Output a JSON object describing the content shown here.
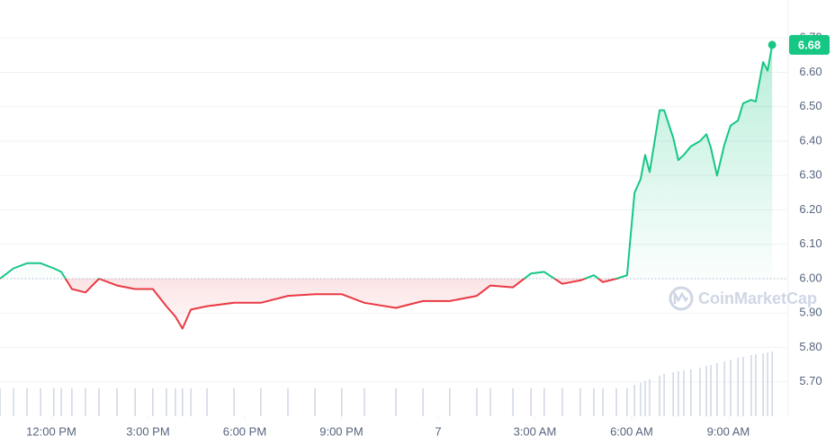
{
  "chart_data": {
    "type": "line",
    "x": [
      -1.59,
      -1.17,
      -0.75,
      -0.33,
      0.08,
      0.31,
      0.64,
      1.06,
      1.48,
      2.04,
      2.6,
      3.15,
      3.57,
      3.85,
      4.07,
      4.33,
      4.83,
      5.67,
      6.5,
      7.34,
      8.18,
      9.01,
      9.71,
      10.69,
      11.53,
      12.36,
      13.2,
      13.62,
      14.32,
      14.88,
      15.29,
      15.85,
      16.41,
      16.83,
      17.11,
      17.53,
      17.86,
      18.09,
      18.28,
      18.42,
      18.56,
      18.87,
      19.01,
      19.29,
      19.45,
      19.62,
      19.84,
      20.12,
      20.32,
      20.46,
      20.65,
      20.88,
      21.07,
      21.3,
      21.46,
      21.71,
      21.85,
      22.08,
      22.22,
      22.36
    ],
    "values": [
      6.0,
      6.03,
      6.045,
      6.045,
      6.03,
      6.02,
      5.97,
      5.96,
      6.0,
      5.98,
      5.97,
      5.97,
      5.92,
      5.89,
      5.855,
      5.91,
      5.92,
      5.93,
      5.93,
      5.95,
      5.955,
      5.955,
      5.93,
      5.915,
      5.935,
      5.935,
      5.95,
      5.98,
      5.975,
      6.015,
      6.02,
      5.985,
      5.995,
      6.01,
      5.99,
      6.0,
      6.01,
      6.25,
      6.29,
      6.36,
      6.31,
      6.49,
      6.49,
      6.41,
      6.345,
      6.36,
      6.385,
      6.4,
      6.42,
      6.38,
      6.3,
      6.39,
      6.445,
      6.46,
      6.51,
      6.52,
      6.515,
      6.63,
      6.605,
      6.68
    ],
    "volume": [
      31,
      31,
      31,
      31,
      31,
      31,
      31,
      31,
      31,
      31,
      31,
      31,
      31,
      31,
      31,
      31,
      31,
      31,
      31,
      31,
      31,
      31,
      31,
      31,
      31,
      31,
      31,
      31,
      31,
      31,
      31,
      31,
      31,
      31,
      31,
      31,
      31,
      35,
      37,
      39,
      41,
      45,
      47,
      49,
      50,
      51,
      52,
      54,
      56,
      57,
      59,
      61,
      63,
      65,
      66,
      68,
      69,
      70,
      71,
      72
    ],
    "baseline": 6.0,
    "up_color": "#16c784",
    "down_color": "#ea3943",
    "xlim": [
      -1.59,
      22.83
    ],
    "xticks": [
      {
        "value": 0,
        "label": "12:00 PM"
      },
      {
        "value": 3,
        "label": "3:00 PM"
      },
      {
        "value": 6,
        "label": "6:00 PM"
      },
      {
        "value": 9,
        "label": "9:00 PM"
      },
      {
        "value": 12,
        "label": "7"
      },
      {
        "value": 15,
        "label": "3:00 AM"
      },
      {
        "value": 18,
        "label": "6:00 AM"
      },
      {
        "value": 21,
        "label": "9:00 AM"
      }
    ],
    "ylim": [
      5.6,
      6.8
    ],
    "yticks": [
      {
        "value": 5.7,
        "label": "5.70"
      },
      {
        "value": 5.8,
        "label": "5.80"
      },
      {
        "value": 5.9,
        "label": "5.90"
      },
      {
        "value": 6.0,
        "label": "6.00"
      },
      {
        "value": 6.1,
        "label": "6.10"
      },
      {
        "value": 6.2,
        "label": "6.20"
      },
      {
        "value": 6.3,
        "label": "6.30"
      },
      {
        "value": 6.4,
        "label": "6.40"
      },
      {
        "value": 6.5,
        "label": "6.50"
      },
      {
        "value": 6.6,
        "label": "6.60"
      },
      {
        "value": 6.7,
        "label": "6.70"
      }
    ],
    "grid": true,
    "watermark": "CoinMarketCap"
  }
}
